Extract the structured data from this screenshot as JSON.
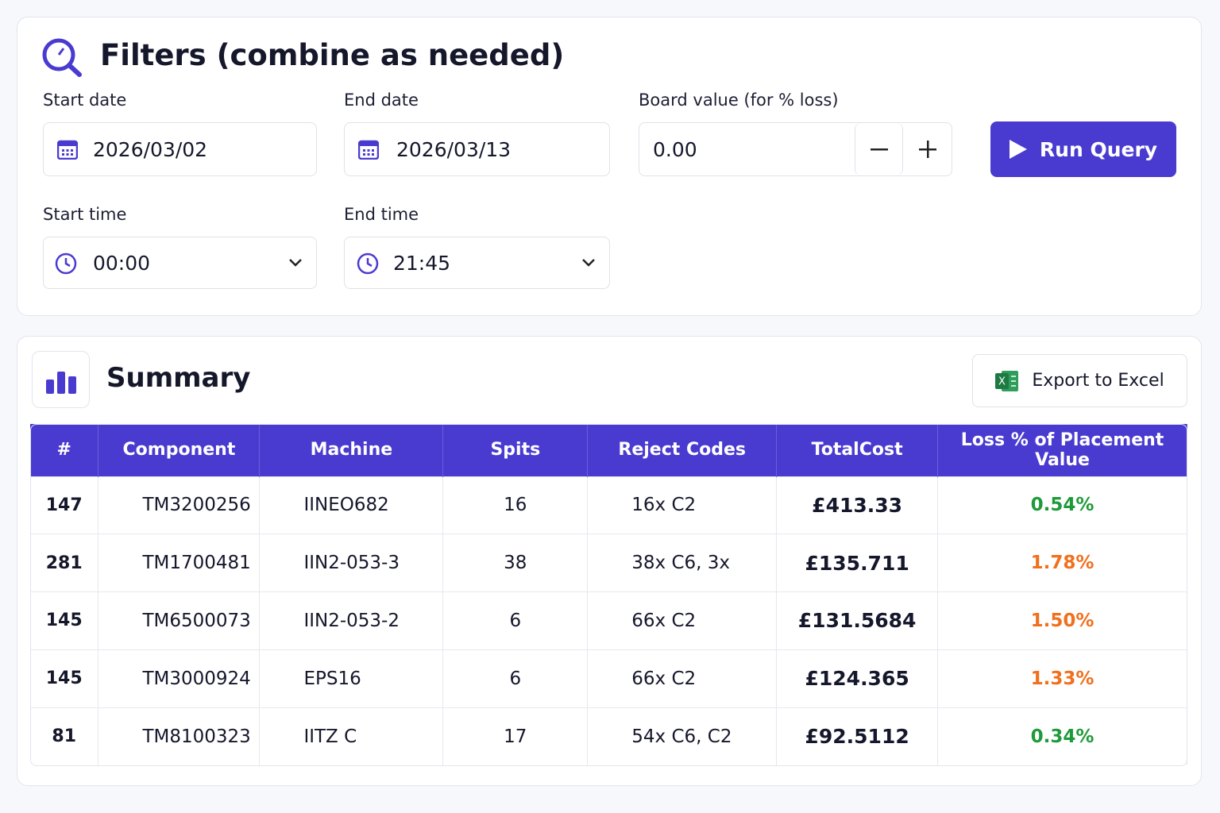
{
  "filters": {
    "title": "Filters (combine as needed)",
    "start_date": {
      "label": "Start date",
      "value": "2026/03/02"
    },
    "end_date": {
      "label": "End date",
      "value": "2026/03/13"
    },
    "board_value": {
      "label": "Board value (for % loss)",
      "value": "0.00"
    },
    "start_time": {
      "label": "Start time",
      "value": "00:00"
    },
    "end_time": {
      "label": "End time",
      "value": "21:45"
    },
    "run_button": "Run Query"
  },
  "summary": {
    "title": "Summary",
    "export_button": "Export to Excel",
    "table": {
      "columns": [
        "#",
        "Component",
        "Machine",
        "Spits",
        "Reject Codes",
        "TotalCost",
        "Loss % of Placement Value"
      ],
      "rows": [
        [
          "147",
          "TM3200256",
          "IINEO682",
          "16",
          "16x C2",
          "£413.33",
          "0.54%"
        ],
        [
          "281",
          "TM1700481",
          "IIN2-053-3",
          "38",
          "38x C6, 3x",
          "£135.711",
          "1.78%"
        ],
        [
          "145",
          "TM6500073",
          "IIN2-053-2",
          "6",
          "66x C2",
          "£131.5684",
          "1.50%"
        ],
        [
          "145",
          "TM3000924",
          "EPS16",
          "6",
          "66x C2",
          "£124.365",
          "1.33%"
        ],
        [
          "81",
          "TM8100323",
          "IITZ C",
          "17",
          "54x C6, C2",
          "£92.5112",
          "0.34%"
        ]
      ],
      "loss_colors": [
        "#1f9a3a",
        "#f0701e",
        "#f0701e",
        "#f0701e",
        "#1f9a3a"
      ]
    }
  }
}
